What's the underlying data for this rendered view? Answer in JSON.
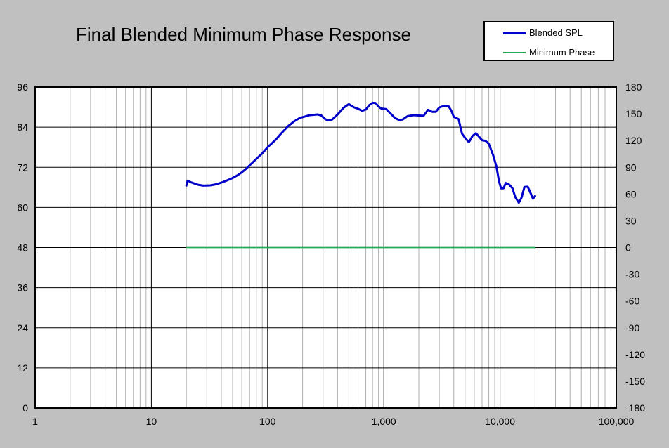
{
  "chart_data": {
    "type": "line",
    "title": "Final Blended Minimum Phase Response",
    "x_scale": "log",
    "xlim": [
      1,
      100000
    ],
    "ylim": [
      0,
      96
    ],
    "y2lim": [
      -180,
      180
    ],
    "grid": true,
    "legend_position": "top-right",
    "x_tick_labels": [
      "1",
      "10",
      "100",
      "1,000",
      "10,000",
      "100,000"
    ],
    "x_tick_values": [
      1,
      10,
      100,
      1000,
      10000,
      100000
    ],
    "y_tick_labels": [
      "0",
      "12",
      "24",
      "36",
      "48",
      "60",
      "72",
      "84",
      "96"
    ],
    "y_tick_values": [
      0,
      12,
      24,
      36,
      48,
      60,
      72,
      84,
      96
    ],
    "y2_tick_labels": [
      "-180",
      "-150",
      "-120",
      "-90",
      "-60",
      "-30",
      "0",
      "30",
      "60",
      "90",
      "120",
      "150",
      "180"
    ],
    "y2_tick_values": [
      -180,
      -150,
      -120,
      -90,
      -60,
      -30,
      0,
      30,
      60,
      90,
      120,
      150,
      180
    ],
    "series": [
      {
        "name": "Blended SPL",
        "color": "#0000cc",
        "axis": "left",
        "points": [
          [
            20,
            66.5
          ],
          [
            20.5,
            68
          ],
          [
            22,
            67.5
          ],
          [
            25,
            66.8
          ],
          [
            28,
            66.5
          ],
          [
            32,
            66.6
          ],
          [
            36,
            66.9
          ],
          [
            40,
            67.4
          ],
          [
            45,
            68.1
          ],
          [
            50,
            68.8
          ],
          [
            55,
            69.6
          ],
          [
            60,
            70.5
          ],
          [
            65,
            71.5
          ],
          [
            70,
            72.6
          ],
          [
            80,
            74.5
          ],
          [
            90,
            76.2
          ],
          [
            100,
            78.0
          ],
          [
            110,
            79.3
          ],
          [
            120,
            80.6
          ],
          [
            130,
            82.0
          ],
          [
            140,
            83.2
          ],
          [
            150,
            84.3
          ],
          [
            170,
            85.8
          ],
          [
            190,
            86.8
          ],
          [
            210,
            87.2
          ],
          [
            230,
            87.6
          ],
          [
            250,
            87.7
          ],
          [
            270,
            87.8
          ],
          [
            290,
            87.5
          ],
          [
            310,
            86.5
          ],
          [
            330,
            86.0
          ],
          [
            360,
            86.3
          ],
          [
            400,
            87.8
          ],
          [
            450,
            89.8
          ],
          [
            500,
            90.9
          ],
          [
            550,
            90.0
          ],
          [
            600,
            89.5
          ],
          [
            650,
            88.9
          ],
          [
            700,
            89.3
          ],
          [
            750,
            90.6
          ],
          [
            800,
            91.3
          ],
          [
            850,
            91.2
          ],
          [
            900,
            90.2
          ],
          [
            950,
            89.6
          ],
          [
            1050,
            89.4
          ],
          [
            1150,
            88.0
          ],
          [
            1250,
            86.7
          ],
          [
            1350,
            86.2
          ],
          [
            1450,
            86.3
          ],
          [
            1600,
            87.3
          ],
          [
            1800,
            87.6
          ],
          [
            2000,
            87.5
          ],
          [
            2200,
            87.4
          ],
          [
            2400,
            89.2
          ],
          [
            2600,
            88.6
          ],
          [
            2800,
            88.6
          ],
          [
            3000,
            89.9
          ],
          [
            3300,
            90.4
          ],
          [
            3600,
            90.3
          ],
          [
            3800,
            89.0
          ],
          [
            4000,
            87.1
          ],
          [
            4400,
            86.4
          ],
          [
            4700,
            82.1
          ],
          [
            5000,
            80.8
          ],
          [
            5400,
            79.5
          ],
          [
            5800,
            81.4
          ],
          [
            6200,
            82.2
          ],
          [
            6600,
            81.1
          ],
          [
            7000,
            80.1
          ],
          [
            7500,
            79.9
          ],
          [
            8000,
            79.0
          ],
          [
            8700,
            75.7
          ],
          [
            9300,
            72.3
          ],
          [
            9800,
            67.8
          ],
          [
            10200,
            65.7
          ],
          [
            10700,
            65.7
          ],
          [
            11200,
            67.3
          ],
          [
            12000,
            66.8
          ],
          [
            12800,
            65.7
          ],
          [
            13500,
            63.1
          ],
          [
            14500,
            61.4
          ],
          [
            15300,
            62.9
          ],
          [
            16200,
            66.1
          ],
          [
            17300,
            66.2
          ],
          [
            18200,
            64.5
          ],
          [
            19200,
            62.6
          ],
          [
            20000,
            63.4
          ]
        ]
      },
      {
        "name": "Minimum Phase",
        "color": "#22aa55",
        "axis": "right",
        "points": [
          [
            20,
            0
          ],
          [
            20000,
            0
          ]
        ]
      }
    ]
  }
}
